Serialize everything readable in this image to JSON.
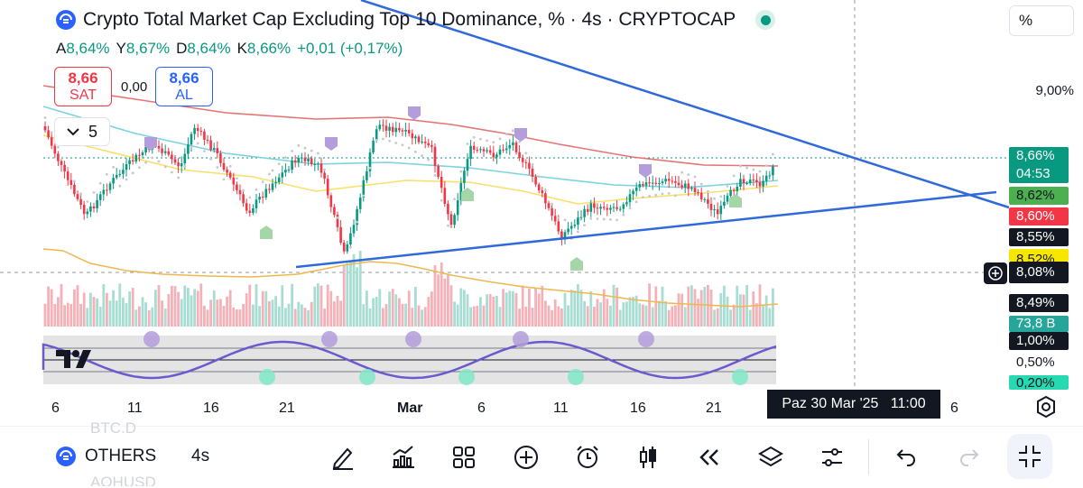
{
  "header": {
    "title": "Crypto Total Market Cap Excluding Top 10 Dominance, % · 4s · CRYPTOCAP",
    "ohlc": {
      "a_key": "A",
      "a": "8,64%",
      "y_key": "Y",
      "y": "8,67%",
      "d_key": "D",
      "d": "8,64%",
      "k_key": "K",
      "k": "8,66%",
      "change": "+0,01 (+0,17%)"
    },
    "sell_price": "8,66",
    "sell_label": "SAT",
    "spread": "0,00",
    "buy_price": "8,66",
    "buy_label": "AL",
    "indicator_count": "5"
  },
  "price_axis": {
    "unit_button": "%",
    "label_9": "9,00%",
    "last_price": "8,66%",
    "countdown": "04:53",
    "tag_green": "8,62%",
    "tag_red": "8,60%",
    "tag_black": "8,55%",
    "tag_yellow": "8,52%",
    "crosshair": "8,08%",
    "tag_dark2": "8,49%",
    "volume": "73,8 B",
    "osc_top": "1,00%",
    "osc_mid": "0,50%",
    "osc_low": "0,20%"
  },
  "time_axis": {
    "ticks": [
      {
        "t": "6"
      },
      {
        "t": "11"
      },
      {
        "t": "16"
      },
      {
        "t": "21"
      },
      {
        "t": "Mar"
      },
      {
        "t": "6"
      },
      {
        "t": "11"
      },
      {
        "t": "16"
      },
      {
        "t": "21"
      },
      {
        "t": "6"
      }
    ],
    "crosshair_date": "Paz 30 Mar '25",
    "crosshair_time": "11:00"
  },
  "toolbar": {
    "symbol": "OTHERS",
    "interval": "4s",
    "ghost_above": "BTC.D",
    "ghost_below": "AOHUSD"
  },
  "colors": {
    "up": "#089981",
    "down": "#f23645",
    "trend": "#2f6ad8",
    "ema_red": "#e57373",
    "ema_teal": "#7dd3dc",
    "ema_yellow": "#f7e06b",
    "accent": "#2962ff"
  }
}
